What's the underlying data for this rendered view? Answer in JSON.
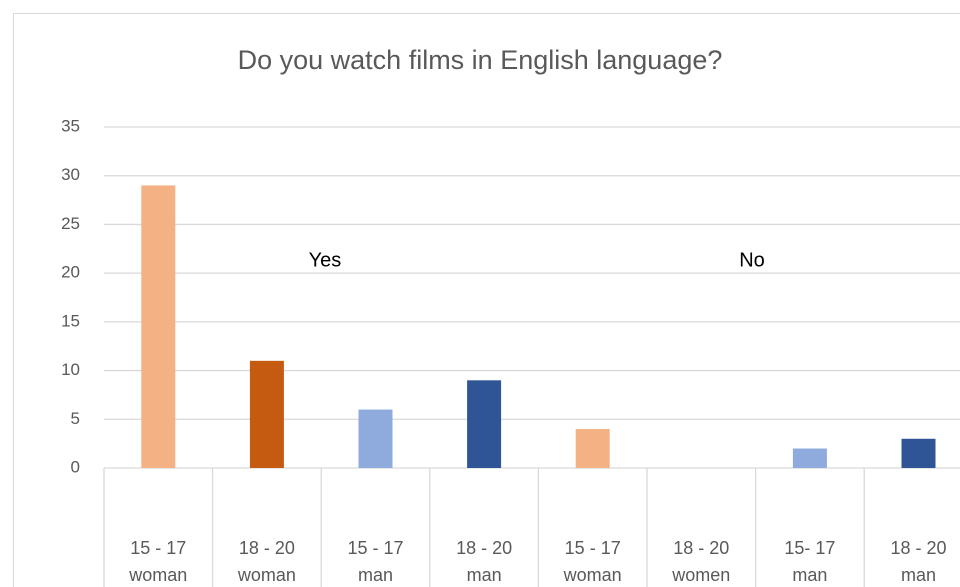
{
  "chart_data": {
    "type": "bar",
    "title": "Do you watch films in English language?",
    "categories": [
      [
        "15 - 17",
        "woman"
      ],
      [
        "18 - 20",
        "woman"
      ],
      [
        "15 - 17",
        "man"
      ],
      [
        "18 - 20",
        "man"
      ],
      [
        "15 - 17",
        "woman"
      ],
      [
        "18 - 20",
        "women"
      ],
      [
        "15- 17",
        "man"
      ],
      [
        "18 - 20",
        "man"
      ]
    ],
    "values": [
      29,
      11,
      6,
      9,
      4,
      0,
      2,
      3
    ],
    "colors": [
      "#f4b183",
      "#c55a11",
      "#8faadc",
      "#2f5597",
      "#f4b183",
      "#c55a11",
      "#8faadc",
      "#2f5597"
    ],
    "annotations": [
      "Yes",
      "No"
    ],
    "ylim": [
      0,
      35
    ],
    "yticks": [
      0,
      5,
      10,
      15,
      20,
      25,
      30,
      35
    ],
    "grid": true
  }
}
